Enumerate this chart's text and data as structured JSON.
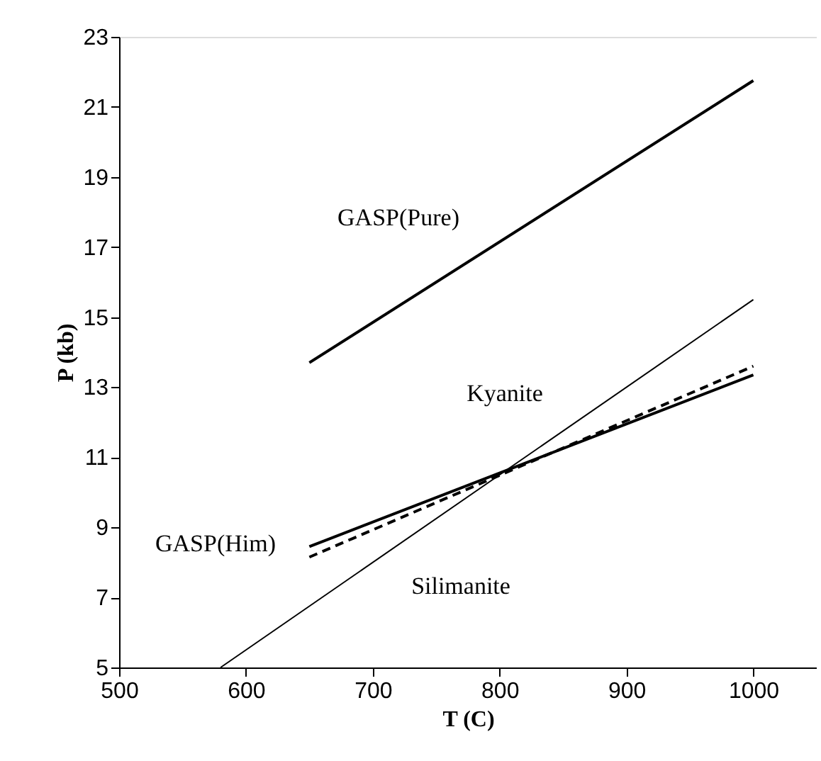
{
  "chart_data": {
    "type": "line",
    "xlabel": "T (C)",
    "ylabel": "P (kb)",
    "xlim": [
      500,
      1050
    ],
    "xticks": [
      500,
      600,
      700,
      800,
      900,
      {
        "value": 1000,
        "label": "1000"
      }
    ],
    "ylim": [
      5,
      23
    ],
    "yticks": [
      5,
      7,
      9,
      11,
      13,
      15,
      17,
      19,
      21,
      23
    ],
    "grid": false,
    "marker": "none",
    "series": [
      {
        "color": "#000000",
        "x": [
          650,
          1000
        ],
        "values": [
          13.7,
          21.75
        ],
        "line_style": "solid"
      },
      {
        "color": "#000000",
        "x": [
          580,
          1000
        ],
        "values": [
          5,
          15.5
        ],
        "line_style": "solid"
      },
      {
        "color": "#000000",
        "x": [
          650,
          1000
        ],
        "values": [
          8.45,
          13.35
        ],
        "line_style": "solid"
      },
      {
        "color": "#000000",
        "x": [
          650,
          1000
        ],
        "values": [
          8.15,
          13.6
        ],
        "line_style": "dashed"
      }
    ],
    "annotations": [
      "GASP(Pure)",
      "Kyanite",
      "GASP(Him)",
      "Silimanite"
    ]
  }
}
